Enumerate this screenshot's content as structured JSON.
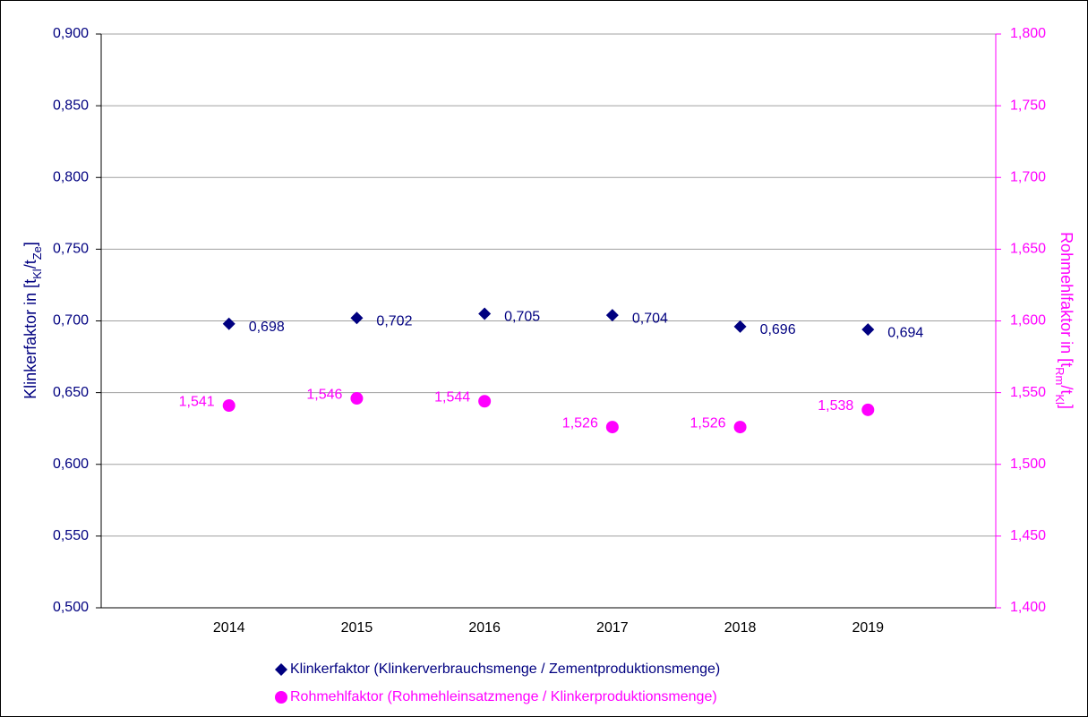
{
  "chart_data": {
    "type": "scatter",
    "x": [
      2014,
      2015,
      2016,
      2017,
      2018,
      2019
    ],
    "xlim": [
      2013,
      2020
    ],
    "xticks": [
      2014,
      2015,
      2016,
      2017,
      2018,
      2019
    ],
    "ylim": [
      0.5,
      0.9
    ],
    "yticks": [
      {
        "value": 0.5,
        "label": "0,500"
      },
      {
        "value": 0.55,
        "label": "0,550"
      },
      {
        "value": 0.6,
        "label": "0,600"
      },
      {
        "value": 0.65,
        "label": "0,650"
      },
      {
        "value": 0.7,
        "label": "0,700"
      },
      {
        "value": 0.75,
        "label": "0,750"
      },
      {
        "value": 0.8,
        "label": "0,800"
      },
      {
        "value": 0.85,
        "label": "0,850"
      },
      {
        "value": 0.9,
        "label": "0,900"
      }
    ],
    "y2lim": [
      1.4,
      1.8
    ],
    "y2ticks": [
      {
        "value": 1.4,
        "label": "1,400"
      },
      {
        "value": 1.45,
        "label": "1,450"
      },
      {
        "value": 1.5,
        "label": "1,500"
      },
      {
        "value": 1.55,
        "label": "1,550"
      },
      {
        "value": 1.6,
        "label": "1,600"
      },
      {
        "value": 1.65,
        "label": "1,650"
      },
      {
        "value": 1.7,
        "label": "1,700"
      },
      {
        "value": 1.75,
        "label": "1,750"
      },
      {
        "value": 1.8,
        "label": "1,800"
      }
    ],
    "ylabel_parts": [
      "Klinkerfaktor in [t",
      "Kl",
      "/t",
      "Ze",
      "]"
    ],
    "y2label_parts": [
      "Rohmehlfaktor in [t",
      "Rm",
      "/t",
      "Kl",
      "]"
    ],
    "grid": true,
    "series": [
      {
        "name": "Klinkerfaktor (Klinkerverbrauchsmenge / Zementproduktionsmenge)",
        "color": "#000080",
        "marker": "diamond",
        "values": [
          0.698,
          0.702,
          0.705,
          0.704,
          0.696,
          0.694
        ],
        "value_labels": [
          "0,698",
          "0,702",
          "0,705",
          "0,704",
          "0,696",
          "0,694"
        ]
      },
      {
        "name": "Rohmehlfaktor (Rohmehleinsatzmenge / Klinkerproduktionsmenge)",
        "color": "#ff00ff",
        "marker": "circle",
        "axis": "y2",
        "values": [
          1.541,
          1.546,
          1.544,
          1.526,
          1.526,
          1.538
        ],
        "value_labels": [
          "1,541",
          "1,546",
          "1,544",
          "1,526",
          "1,526",
          "1,538"
        ]
      }
    ]
  }
}
